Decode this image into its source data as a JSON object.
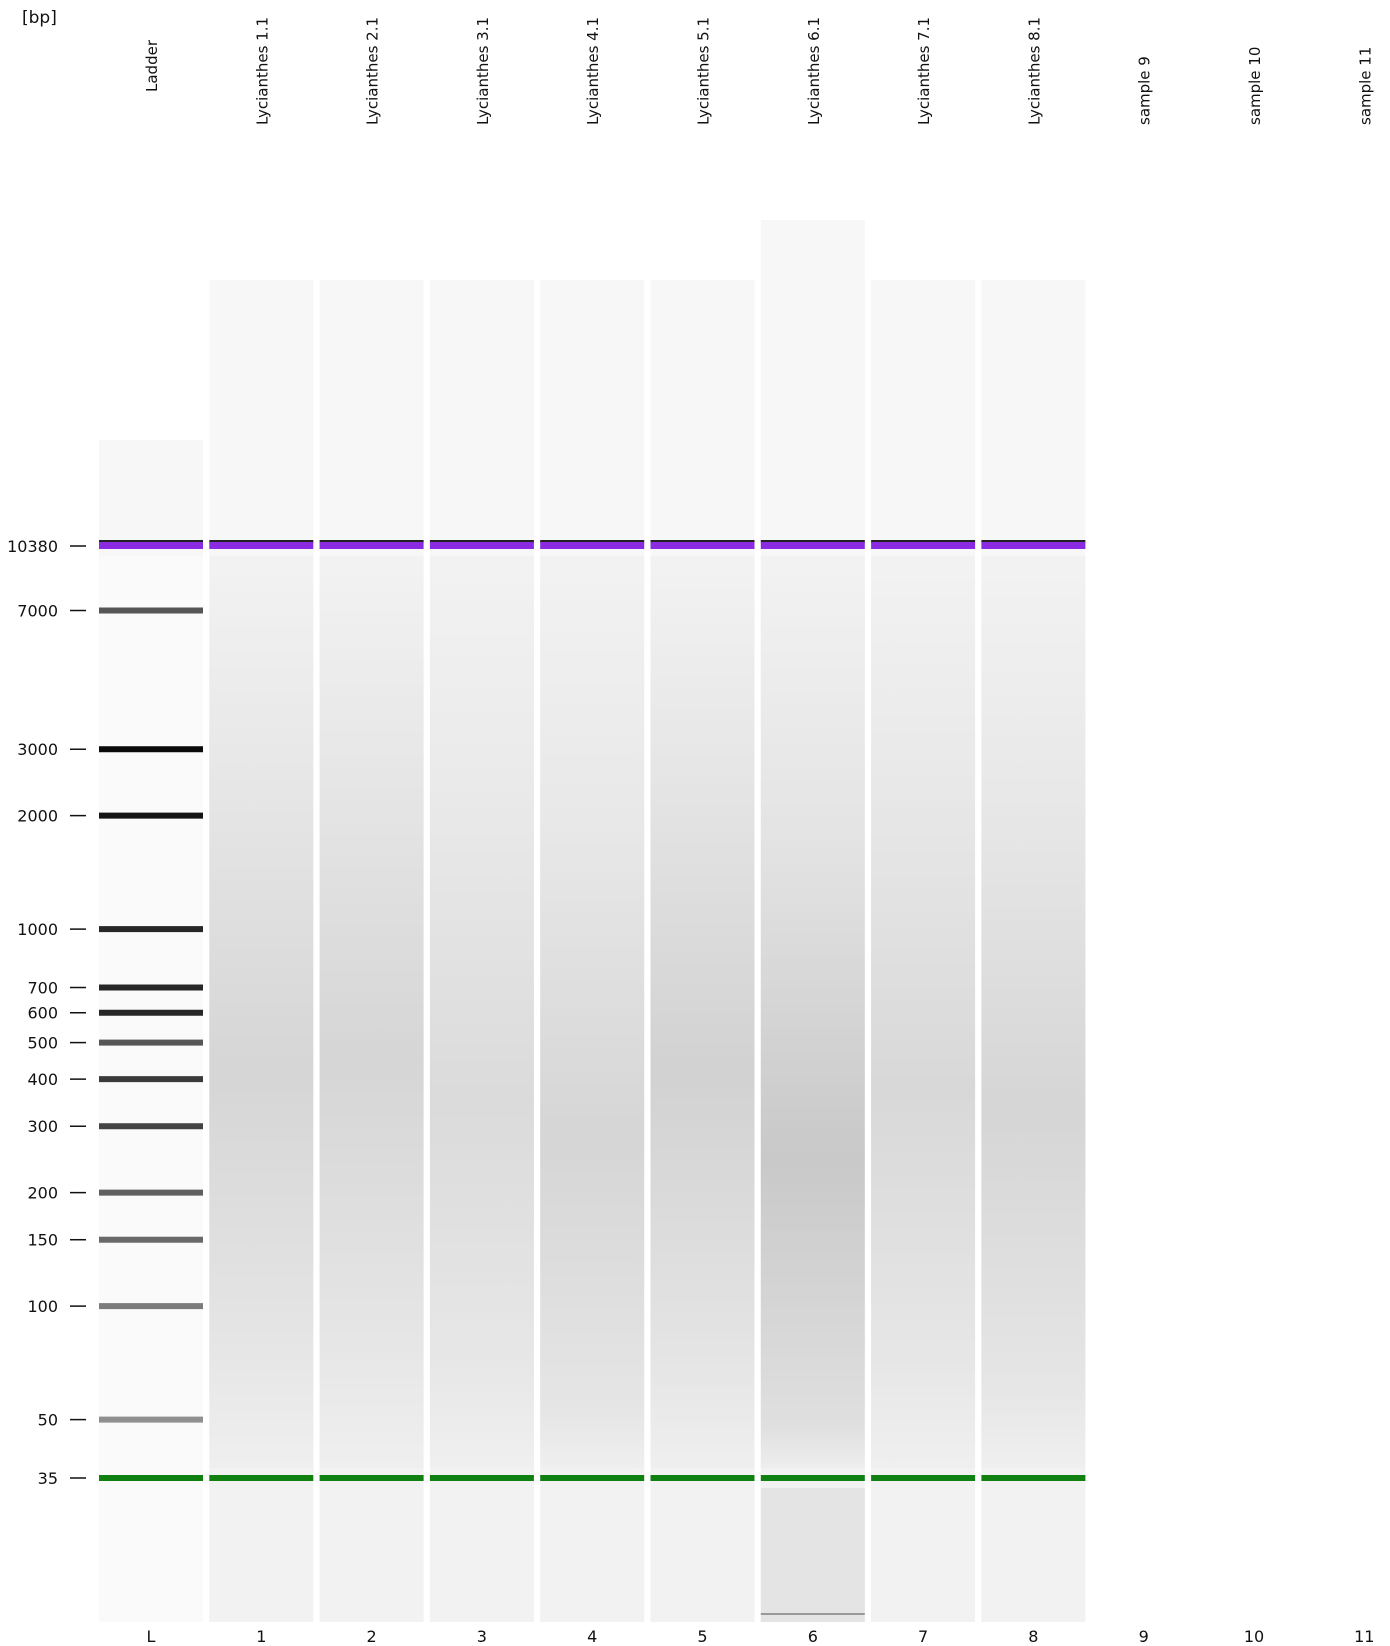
{
  "unit_label": "[bp]",
  "colors": {
    "upper_marker": "#8a2be2",
    "lower_marker": "#108010",
    "band": "#111111",
    "lane_bg": "#f2f2f2",
    "smear": "#b0b0b0"
  },
  "chart_data": {
    "type": "gel electrophoresis",
    "y_axis_scale": "log",
    "size_ticks": [
      10380,
      7000,
      3000,
      2000,
      1000,
      700,
      600,
      500,
      400,
      300,
      200,
      150,
      100,
      50,
      35
    ],
    "upper_marker_bp": 10380,
    "lower_marker_bp": 35,
    "lanes": [
      {
        "index": "L",
        "name": "Ladder",
        "kind": "ladder",
        "bands": [
          {
            "bp": 7000,
            "intensity": 0.6
          },
          {
            "bp": 3000,
            "intensity": 1.0
          },
          {
            "bp": 2000,
            "intensity": 0.95
          },
          {
            "bp": 1000,
            "intensity": 0.85
          },
          {
            "bp": 700,
            "intensity": 0.85
          },
          {
            "bp": 600,
            "intensity": 0.85
          },
          {
            "bp": 500,
            "intensity": 0.6
          },
          {
            "bp": 400,
            "intensity": 0.75
          },
          {
            "bp": 300,
            "intensity": 0.7
          },
          {
            "bp": 200,
            "intensity": 0.55
          },
          {
            "bp": 150,
            "intensity": 0.5
          },
          {
            "bp": 100,
            "intensity": 0.4
          },
          {
            "bp": 50,
            "intensity": 0.3
          }
        ]
      },
      {
        "index": "1",
        "name": "Lycianthes 1.1",
        "kind": "sample",
        "smear_peak_bp": 420,
        "smear_intensity": 0.22
      },
      {
        "index": "2",
        "name": "Lycianthes 2.1",
        "kind": "sample",
        "smear_peak_bp": 450,
        "smear_intensity": 0.22
      },
      {
        "index": "3",
        "name": "Lycianthes 3.1",
        "kind": "sample",
        "smear_peak_bp": 350,
        "smear_intensity": 0.18
      },
      {
        "index": "4",
        "name": "Lycianthes 4.1",
        "kind": "sample",
        "smear_peak_bp": 280,
        "smear_intensity": 0.22
      },
      {
        "index": "5",
        "name": "Lycianthes 5.1",
        "kind": "sample",
        "smear_peak_bp": 420,
        "smear_intensity": 0.25
      },
      {
        "index": "6",
        "name": "Lycianthes 6.1",
        "kind": "sample",
        "smear_peak_bp": 250,
        "smear_intensity": 0.32
      },
      {
        "index": "7",
        "name": "Lycianthes 7.1",
        "kind": "sample",
        "smear_peak_bp": 380,
        "smear_intensity": 0.2
      },
      {
        "index": "8",
        "name": "Lycianthes 8.1",
        "kind": "sample",
        "smear_peak_bp": 330,
        "smear_intensity": 0.22
      },
      {
        "index": "9",
        "name": "sample 9",
        "kind": "empty"
      },
      {
        "index": "10",
        "name": "sample 10",
        "kind": "empty"
      },
      {
        "index": "11",
        "name": "sample 11",
        "kind": "empty"
      }
    ]
  }
}
